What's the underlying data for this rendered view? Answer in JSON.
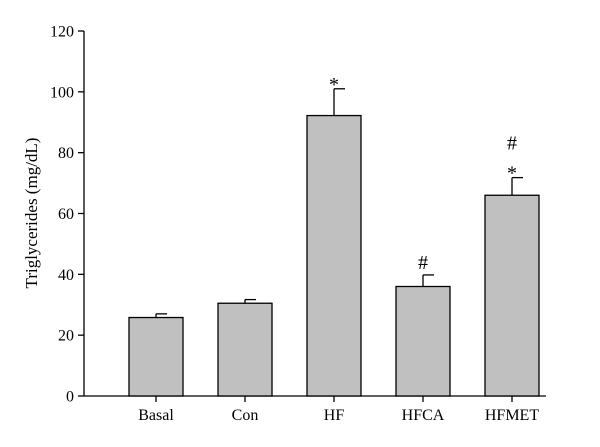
{
  "chart_data": {
    "type": "bar",
    "ylabel": "Triglycerides (mg/dL)",
    "xlabel": "",
    "ylim": [
      0,
      120
    ],
    "yticks": [
      0,
      20,
      40,
      60,
      80,
      100,
      120
    ],
    "categories": [
      "Basal",
      "Con",
      "HF",
      "HFCA",
      "HFMET"
    ],
    "values": [
      25.8,
      30.5,
      92.2,
      36.0,
      66.0
    ],
    "errors": [
      1.2,
      1.2,
      8.8,
      3.8,
      5.8
    ],
    "annotations": [
      {
        "category": "HF",
        "marks": [
          "*"
        ]
      },
      {
        "category": "HFCA",
        "marks": [
          "#"
        ]
      },
      {
        "category": "HFMET",
        "marks": [
          "*",
          "#"
        ]
      }
    ],
    "bar_color": "#c0c0c0",
    "edge_color": "#000000",
    "grid": false
  }
}
